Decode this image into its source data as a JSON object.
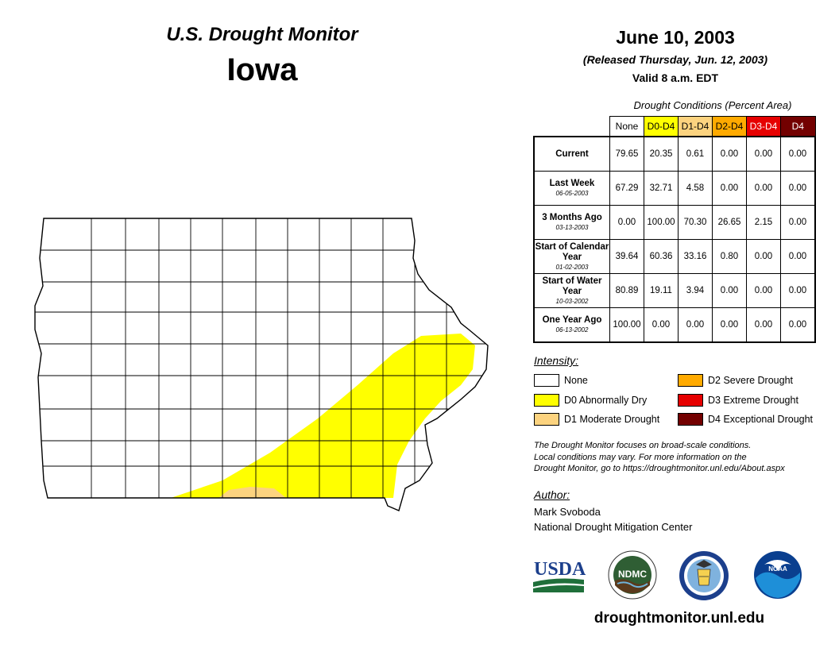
{
  "header": {
    "monitor_title": "U.S. Drought Monitor",
    "state": "Iowa",
    "date": "June 10, 2003",
    "released": "(Released Thursday, Jun. 12, 2003)",
    "valid": "Valid 8 a.m. EDT"
  },
  "conditions_table": {
    "caption": "Drought Conditions (Percent Area)",
    "columns": [
      "None",
      "D0-D4",
      "D1-D4",
      "D2-D4",
      "D3-D4",
      "D4"
    ],
    "column_colors": [
      "#ffffff",
      "#ffff00",
      "#fcd37f",
      "#ffaa00",
      "#e60000",
      "#730000"
    ],
    "rows": [
      {
        "label": "Current",
        "date": "",
        "values": [
          "79.65",
          "20.35",
          "0.61",
          "0.00",
          "0.00",
          "0.00"
        ]
      },
      {
        "label": "Last Week",
        "date": "06-05-2003",
        "values": [
          "67.29",
          "32.71",
          "4.58",
          "0.00",
          "0.00",
          "0.00"
        ]
      },
      {
        "label": "3 Months Ago",
        "date": "03-13-2003",
        "values": [
          "0.00",
          "100.00",
          "70.30",
          "26.65",
          "2.15",
          "0.00"
        ]
      },
      {
        "label": "Start of Calendar Year",
        "date": "01-02-2003",
        "values": [
          "39.64",
          "60.36",
          "33.16",
          "0.80",
          "0.00",
          "0.00"
        ]
      },
      {
        "label": "Start of Water Year",
        "date": "10-03-2002",
        "values": [
          "80.89",
          "19.11",
          "3.94",
          "0.00",
          "0.00",
          "0.00"
        ]
      },
      {
        "label": "One Year Ago",
        "date": "06-13-2002",
        "values": [
          "100.00",
          "0.00",
          "0.00",
          "0.00",
          "0.00",
          "0.00"
        ]
      }
    ]
  },
  "legend": {
    "title": "Intensity:",
    "items": [
      {
        "label": "None",
        "color": "#ffffff"
      },
      {
        "label": "D0 Abnormally Dry",
        "color": "#ffff00"
      },
      {
        "label": "D1 Moderate Drought",
        "color": "#fcd37f"
      },
      {
        "label": "D2 Severe Drought",
        "color": "#ffaa00"
      },
      {
        "label": "D3 Extreme Drought",
        "color": "#e60000"
      },
      {
        "label": "D4 Exceptional Drought",
        "color": "#730000"
      }
    ]
  },
  "note": {
    "line1": "The Drought Monitor focuses on broad-scale conditions.",
    "line2": "Local conditions may vary. For more information on the",
    "line3": "Drought Monitor, go to https://droughtmonitor.unl.edu/About.aspx"
  },
  "author": {
    "title": "Author:",
    "name": "Mark Svoboda",
    "org": "National Drought Mitigation Center"
  },
  "logos": {
    "usda": "USDA",
    "ndmc": "NDMC",
    "noaa": "NOAA"
  },
  "website": "droughtmonitor.unl.edu"
}
